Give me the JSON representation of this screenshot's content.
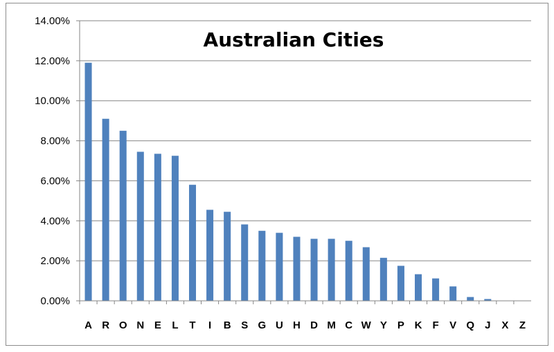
{
  "chart_data": {
    "type": "bar",
    "title": "Australian Cities",
    "xlabel": "",
    "ylabel": "",
    "ylim": [
      0,
      0.14
    ],
    "ytick_step": 0.02,
    "ytick_labels": [
      "0.00%",
      "2.00%",
      "4.00%",
      "6.00%",
      "8.00%",
      "10.00%",
      "12.00%",
      "14.00%"
    ],
    "grid": true,
    "legend": "none",
    "colors": {
      "bar": "#4f81bd",
      "grid": "#868686",
      "axis": "#868686"
    },
    "categories": [
      "A",
      "R",
      "O",
      "N",
      "E",
      "L",
      "T",
      "I",
      "B",
      "S",
      "G",
      "U",
      "H",
      "D",
      "M",
      "C",
      "W",
      "Y",
      "P",
      "K",
      "F",
      "V",
      "Q",
      "J",
      "X",
      "Z"
    ],
    "values": [
      0.119,
      0.091,
      0.085,
      0.0745,
      0.0735,
      0.0725,
      0.058,
      0.0455,
      0.0445,
      0.0382,
      0.035,
      0.034,
      0.032,
      0.031,
      0.031,
      0.03,
      0.0268,
      0.0215,
      0.0175,
      0.0133,
      0.0112,
      0.0072,
      0.0019,
      0.0009,
      0.0,
      0.0
    ]
  }
}
